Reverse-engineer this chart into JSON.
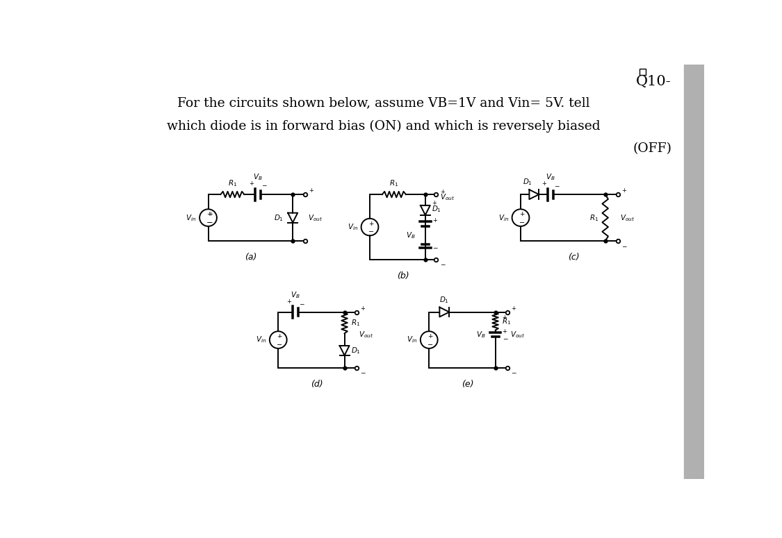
{
  "title_line1": "Q10-",
  "title_line2": "For the circuits shown below, assume VB=1V and Vin= 5V. tell",
  "title_line3": "which diode is in forward bias (ON) and which is reversely biased",
  "title_line4": "(OFF)",
  "background_color": "#ffffff",
  "text_color": "#000000",
  "circuit_color": "#000000",
  "label_a": "(a)",
  "label_b": "(b)",
  "label_c": "(c)",
  "label_d": "(d)",
  "label_e": "(e)",
  "sidebar_color": "#b0b0b0"
}
